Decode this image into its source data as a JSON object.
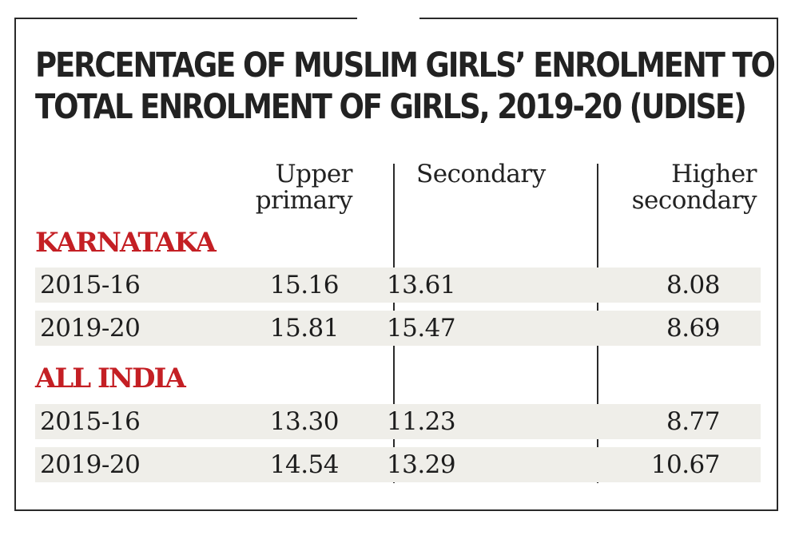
{
  "chart_data": {
    "type": "table",
    "title_lines": [
      "PERCENTAGE OF MUSLIM GIRLS’ ENROLMENT TO",
      "TOTAL ENROLMENT OF GIRLS, 2019-20 (UDISE)"
    ],
    "columns": [
      {
        "line1": "Upper",
        "line2": "primary"
      },
      {
        "line1": "Secondary",
        "line2": ""
      },
      {
        "line1": "Higher",
        "line2": "secondary"
      }
    ],
    "groups": [
      {
        "name": "KARNATAKA",
        "rows": [
          {
            "year": "2015-16",
            "values": [
              "15.16",
              "13.61",
              "8.08"
            ]
          },
          {
            "year": "2019-20",
            "values": [
              "15.81",
              "15.47",
              "8.69"
            ]
          }
        ]
      },
      {
        "name": "ALL INDIA",
        "rows": [
          {
            "year": "2015-16",
            "values": [
              "13.30",
              "11.23",
              "8.77"
            ]
          },
          {
            "year": "2019-20",
            "values": [
              "14.54",
              "13.29",
              "10.67"
            ]
          }
        ]
      }
    ],
    "colors": {
      "group_label": "#c41f24",
      "row_shading": "#efeee9",
      "text": "#1d1d1d",
      "rules": "#2a2a2a"
    }
  }
}
